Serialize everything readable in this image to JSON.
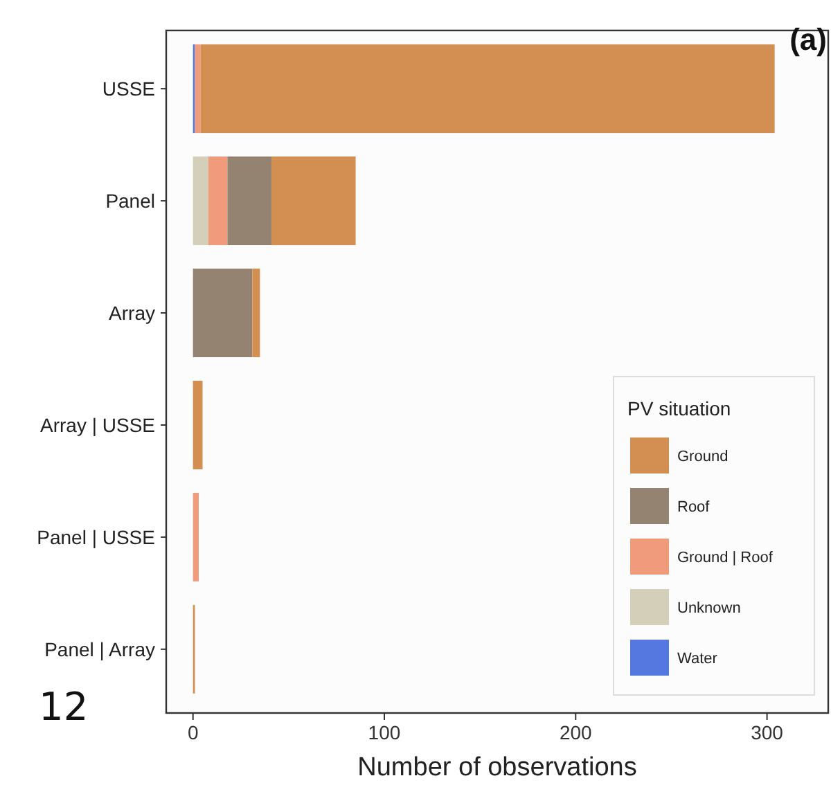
{
  "chart_data": {
    "type": "bar",
    "orientation": "horizontal",
    "stacked": true,
    "xlabel": "Number of observations",
    "legend_title": "PV situation",
    "legend": "bottom right",
    "grid": false,
    "categories": [
      "USSE",
      "Panel",
      "Array",
      "Array | USSE",
      "Panel | USSE",
      "Panel | Array"
    ],
    "series": [
      {
        "name": "Water",
        "color": "#5577e0",
        "values": [
          1,
          0,
          0,
          0,
          0,
          0
        ]
      },
      {
        "name": "Unknown",
        "color": "#d4cfb8",
        "values": [
          0,
          8,
          0,
          0,
          0,
          0
        ]
      },
      {
        "name": "Ground | Roof",
        "color": "#ef9b7c",
        "values": [
          3,
          10,
          0,
          0,
          3,
          0
        ]
      },
      {
        "name": "Roof",
        "color": "#958372",
        "values": [
          0,
          23,
          31,
          0,
          0,
          0
        ]
      },
      {
        "name": "Ground",
        "color": "#d28f51",
        "values": [
          300,
          44,
          4,
          5,
          0,
          1
        ]
      }
    ],
    "xlim": [
      -14,
      332
    ],
    "xticks": [
      0,
      100,
      200,
      300
    ],
    "annotations": [
      "(a)",
      "12"
    ]
  }
}
